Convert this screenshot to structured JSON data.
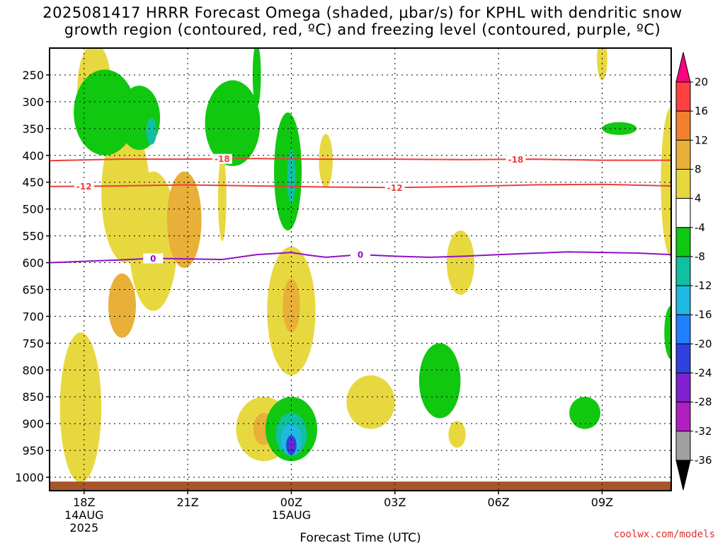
{
  "title_line1": "2025081417 HRRR Forecast Omega (shaded, μbar/s) for KPHL with dendritic snow",
  "title_line2": "growth region (contoured, red, ºC) and freezing level (contoured, purple, ºC)",
  "credit": "coolwx.com/models",
  "chart_data": {
    "type": "heatmap",
    "xlabel": "Forecast Time (UTC)",
    "ylabel": "",
    "x_ticks": [
      {
        "label": "18Z",
        "sub": [
          "14AUG",
          "2025"
        ],
        "hour": 1
      },
      {
        "label": "21Z",
        "sub": [],
        "hour": 4
      },
      {
        "label": "00Z",
        "sub": [
          "15AUG"
        ],
        "hour": 7
      },
      {
        "label": "03Z",
        "sub": [],
        "hour": 10
      },
      {
        "label": "06Z",
        "sub": [],
        "hour": 13
      },
      {
        "label": "09Z",
        "sub": [],
        "hour": 16
      }
    ],
    "xlim_hours": [
      0,
      18
    ],
    "y_ticks": [
      250,
      300,
      350,
      400,
      450,
      500,
      550,
      600,
      650,
      700,
      750,
      800,
      850,
      900,
      950,
      1000
    ],
    "ylim_hPa": [
      200,
      1025
    ],
    "grid": "dotted",
    "colorbar": {
      "labels": [
        20,
        16,
        12,
        8,
        4,
        -4,
        -8,
        -12,
        -16,
        -20,
        -24,
        -28,
        -32,
        -36
      ],
      "colors": [
        "#ff0080",
        "#ff4040",
        "#f08030",
        "#e8b038",
        "#e8d840",
        "#ffffff",
        "#10c810",
        "#10c0a0",
        "#20b8e0",
        "#2080ff",
        "#3040e0",
        "#8020d0",
        "#b020c0",
        "#a0a0a0",
        "#000000"
      ]
    },
    "contours": [
      {
        "name": "-18",
        "color": "#f03c3c",
        "labels_at_hour": [
          5,
          13.5
        ],
        "points": [
          [
            0,
            410
          ],
          [
            2,
            407
          ],
          [
            4,
            407
          ],
          [
            6,
            406
          ],
          [
            8,
            407
          ],
          [
            10,
            407
          ],
          [
            12,
            408
          ],
          [
            14,
            407
          ],
          [
            16,
            409
          ],
          [
            18,
            409
          ]
        ]
      },
      {
        "name": "-12",
        "color": "#f03c3c",
        "labels_at_hour": [
          1,
          10
        ],
        "points": [
          [
            0,
            458
          ],
          [
            2,
            457
          ],
          [
            4,
            455
          ],
          [
            6,
            457
          ],
          [
            8,
            459
          ],
          [
            10,
            460
          ],
          [
            12,
            458
          ],
          [
            14,
            455
          ],
          [
            16,
            454
          ],
          [
            18,
            457
          ]
        ]
      },
      {
        "name": "0",
        "color": "#9010c8",
        "labels_at_hour": [
          3,
          9
        ],
        "points": [
          [
            0,
            600
          ],
          [
            2,
            595
          ],
          [
            3,
            592
          ],
          [
            5,
            594
          ],
          [
            6,
            585
          ],
          [
            7,
            581
          ],
          [
            7.5,
            586
          ],
          [
            8,
            590
          ],
          [
            9,
            585
          ],
          [
            10,
            588
          ],
          [
            11,
            590
          ],
          [
            12,
            588
          ],
          [
            13,
            585
          ],
          [
            15,
            580
          ],
          [
            17,
            582
          ],
          [
            18,
            585
          ]
        ]
      }
    ],
    "omega_regions": [
      {
        "value": 6,
        "color": "#e8d840",
        "center": [
          0.9,
          870
        ],
        "rx": 0.6,
        "ry": 140
      },
      {
        "value": 6,
        "color": "#e8d840",
        "center": [
          2.2,
          470
        ],
        "rx": 0.7,
        "ry": 130
      },
      {
        "value": 6,
        "color": "#e8d840",
        "center": [
          3.0,
          560
        ],
        "rx": 0.7,
        "ry": 130
      },
      {
        "value": 6,
        "color": "#e8d840",
        "center": [
          1.3,
          280
        ],
        "rx": 0.5,
        "ry": 90
      },
      {
        "value": 10,
        "color": "#e8b038",
        "center": [
          3.9,
          520
        ],
        "rx": 0.5,
        "ry": 90
      },
      {
        "value": 10,
        "color": "#e8b038",
        "center": [
          2.1,
          680
        ],
        "rx": 0.4,
        "ry": 60
      },
      {
        "value": 6,
        "color": "#e8d840",
        "center": [
          7.0,
          690
        ],
        "rx": 0.7,
        "ry": 120
      },
      {
        "value": 10,
        "color": "#e8b038",
        "center": [
          7.0,
          680
        ],
        "rx": 0.25,
        "ry": 50
      },
      {
        "value": 6,
        "color": "#e8d840",
        "center": [
          6.2,
          910
        ],
        "rx": 0.8,
        "ry": 60
      },
      {
        "value": 10,
        "color": "#e8b038",
        "center": [
          6.2,
          910
        ],
        "rx": 0.3,
        "ry": 30
      },
      {
        "value": 6,
        "color": "#e8d840",
        "center": [
          9.3,
          860
        ],
        "rx": 0.7,
        "ry": 50
      },
      {
        "value": 6,
        "color": "#e8d840",
        "center": [
          11.9,
          600
        ],
        "rx": 0.4,
        "ry": 60
      },
      {
        "value": 6,
        "color": "#e8d840",
        "center": [
          11.8,
          920
        ],
        "rx": 0.25,
        "ry": 25
      },
      {
        "value": 6,
        "color": "#e8d840",
        "center": [
          8.0,
          410
        ],
        "rx": 0.2,
        "ry": 50
      },
      {
        "value": 6,
        "color": "#e8d840",
        "center": [
          5.0,
          480
        ],
        "rx": 0.12,
        "ry": 80
      },
      {
        "value": 6,
        "color": "#e8d840",
        "center": [
          16.0,
          220
        ],
        "rx": 0.15,
        "ry": 40
      },
      {
        "value": 6,
        "color": "#e8d840",
        "center": [
          18.0,
          450
        ],
        "rx": 0.3,
        "ry": 140
      },
      {
        "value": -6,
        "color": "#10c810",
        "center": [
          1.6,
          320
        ],
        "rx": 0.9,
        "ry": 80
      },
      {
        "value": -6,
        "color": "#10c810",
        "center": [
          2.6,
          330
        ],
        "rx": 0.6,
        "ry": 60
      },
      {
        "value": -10,
        "color": "#10c0a0",
        "center": [
          2.95,
          355
        ],
        "rx": 0.15,
        "ry": 25
      },
      {
        "value": -6,
        "color": "#10c810",
        "center": [
          5.3,
          340
        ],
        "rx": 0.8,
        "ry": 80
      },
      {
        "value": -6,
        "color": "#10c810",
        "center": [
          6.9,
          430
        ],
        "rx": 0.4,
        "ry": 110
      },
      {
        "value": -10,
        "color": "#10c0a0",
        "center": [
          7.0,
          440
        ],
        "rx": 0.12,
        "ry": 50
      },
      {
        "value": -6,
        "color": "#10c810",
        "center": [
          6.0,
          250
        ],
        "rx": 0.12,
        "ry": 60
      },
      {
        "value": -6,
        "color": "#10c810",
        "center": [
          7.0,
          910
        ],
        "rx": 0.75,
        "ry": 60
      },
      {
        "value": -14,
        "color": "#10c0a0",
        "center": [
          7.0,
          920
        ],
        "rx": 0.45,
        "ry": 40
      },
      {
        "value": -18,
        "color": "#20b8e0",
        "center": [
          7.0,
          930
        ],
        "rx": 0.3,
        "ry": 30
      },
      {
        "value": -22,
        "color": "#3040e0",
        "center": [
          7.0,
          940
        ],
        "rx": 0.15,
        "ry": 18
      },
      {
        "value": -26,
        "color": "#8020d0",
        "center": [
          7.0,
          940
        ],
        "rx": 0.06,
        "ry": 10
      },
      {
        "value": -6,
        "color": "#10c810",
        "center": [
          11.3,
          820
        ],
        "rx": 0.6,
        "ry": 70
      },
      {
        "value": -6,
        "color": "#10c810",
        "center": [
          15.5,
          880
        ],
        "rx": 0.45,
        "ry": 30
      },
      {
        "value": -6,
        "color": "#10c810",
        "center": [
          16.5,
          350
        ],
        "rx": 0.5,
        "ry": 12
      },
      {
        "value": -6,
        "color": "#10c810",
        "center": [
          18.0,
          730
        ],
        "rx": 0.2,
        "ry": 50
      }
    ],
    "ground": {
      "color": "#a65628",
      "from_hPa": 1008
    }
  }
}
